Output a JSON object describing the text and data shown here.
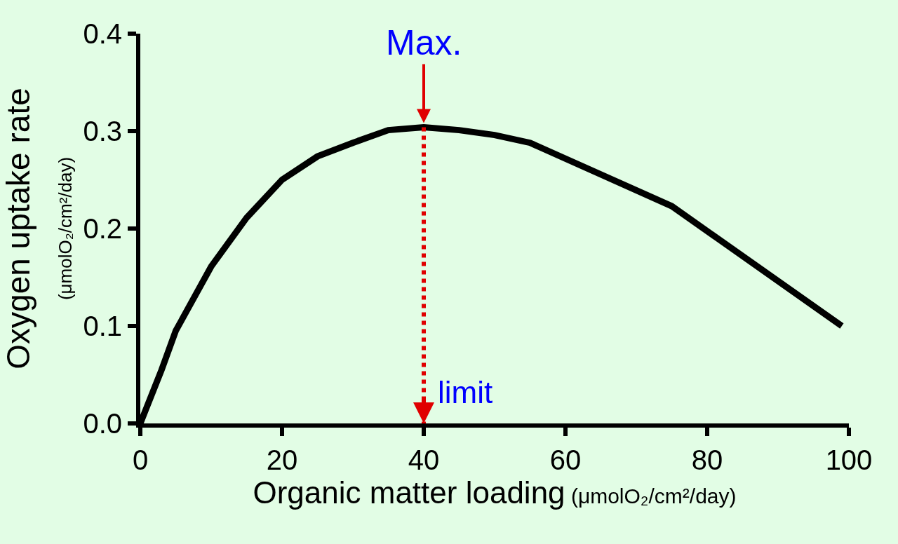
{
  "chart_data": {
    "type": "line",
    "xlabel": "Organic matter loading (μmolO₂/cm²/day)",
    "ylabel": "Oxygen uptake rate\n(μmolO₂/cm²/day)",
    "x": [
      0,
      3,
      5,
      10,
      15,
      20,
      25,
      30,
      35,
      40,
      45,
      50,
      55,
      75,
      99
    ],
    "series": [
      {
        "color": "#000000",
        "values": [
          0,
          0.055,
          0.095,
          0.161,
          0.211,
          0.25,
          0.274,
          0.288,
          0.301,
          0.304,
          0.301,
          0.296,
          0.288,
          0.223,
          0.1
        ]
      }
    ],
    "xlim": [
      0,
      100
    ],
    "xticks": [
      0,
      20,
      40,
      60,
      80,
      100
    ],
    "ylim": [
      0,
      0.4
    ],
    "yticks": [
      {
        "value": 0,
        "label": "0.0"
      },
      0.1,
      0.2,
      0.3,
      0.4
    ],
    "annotations": [
      {
        "text": "Max.",
        "x": 40,
        "y": 0.304
      }
    ],
    "ref_lines": [
      {
        "axis": "x",
        "value": 40,
        "label": "limit",
        "color": "#e00000",
        "line_style": "dotted"
      }
    ],
    "grid": false,
    "marker": "none",
    "line_style": "solid"
  }
}
